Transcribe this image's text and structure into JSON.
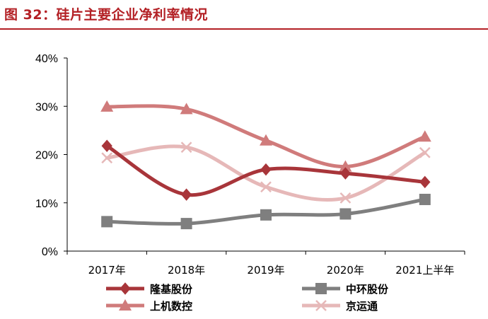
{
  "figure": {
    "title": "图 32：硅片主要企业净利率情况"
  },
  "colors": {
    "accent": "#b32025",
    "series": [
      "#a8353a",
      "#7f7f7f",
      "#d07b7b",
      "#e6b8b8"
    ]
  },
  "chart_data": {
    "type": "line",
    "categories": [
      "2017年",
      "2018年",
      "2019年",
      "2020年",
      "2021上半年"
    ],
    "y_tick_labels": [
      "0%",
      "10%",
      "20%",
      "30%",
      "40%"
    ],
    "ylim": [
      0,
      40
    ],
    "y_unit": "%",
    "grid": false,
    "legend_position": "bottom",
    "series": [
      {
        "name": "隆基股份",
        "marker": "diamond",
        "values": [
          21.8,
          11.7,
          16.9,
          16.1,
          14.3
        ]
      },
      {
        "name": "中环股份",
        "marker": "square",
        "values": [
          6.1,
          5.7,
          7.5,
          7.7,
          10.7
        ]
      },
      {
        "name": "上机数控",
        "marker": "triangle",
        "values": [
          29.9,
          29.4,
          22.9,
          17.5,
          23.7
        ]
      },
      {
        "name": "京运通",
        "marker": "x",
        "values": [
          19.3,
          21.5,
          13.3,
          11.0,
          20.4
        ]
      }
    ]
  }
}
